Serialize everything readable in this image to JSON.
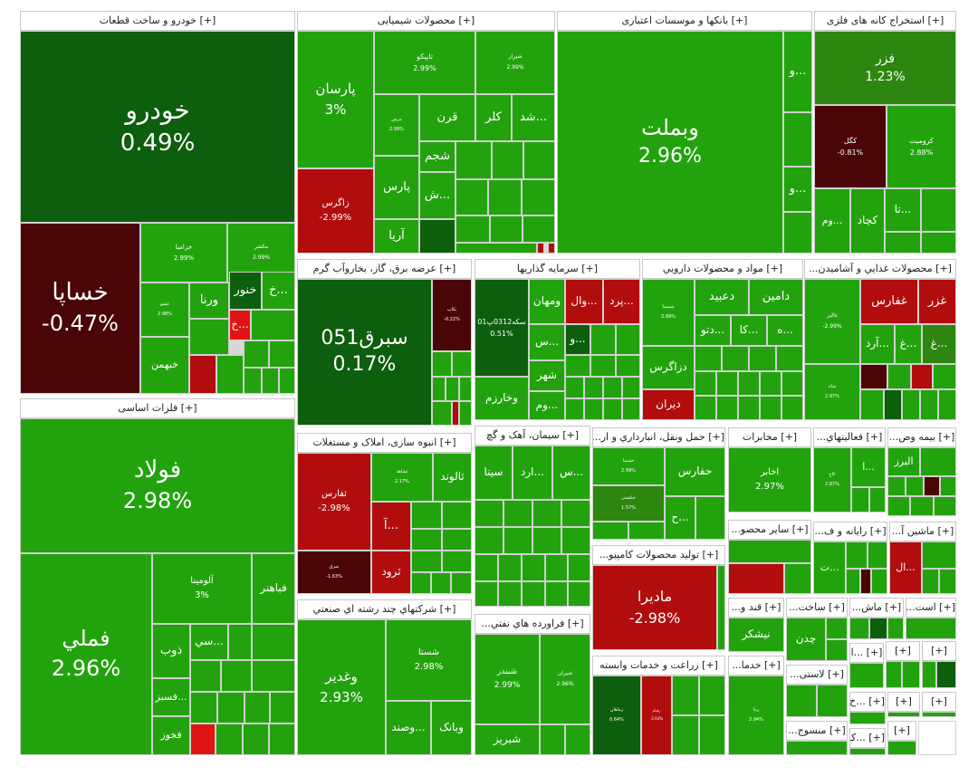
{
  "colors": {
    "green": "#22a30d",
    "dark_green": "#0d5e0d",
    "medium_green": "#2d860f",
    "red": "#b20d0d",
    "dark_red": "#4a0606",
    "bright_red": "#e01414"
  },
  "sectors": [
    {
      "id": "auto",
      "label": "[+] خودرو و ساخت قطعات",
      "tiles": [
        {
          "sym": "خودرو",
          "pct": "0.49%",
          "color": "dark_green",
          "size": "xl"
        },
        {
          "sym": "خساپا",
          "pct": "-0.47%",
          "color": "dark_red",
          "size": "l"
        },
        {
          "sym": "خزامیا",
          "pct": "2.99%",
          "color": "green",
          "size": "xs"
        },
        {
          "sym": "مکشر",
          "pct": "2.99%",
          "color": "green",
          "size": "xs"
        },
        {
          "sym": "غشو",
          "pct": "2.98%",
          "color": "green",
          "size": "xxs"
        },
        {
          "sym": "ورنا",
          "pct": "",
          "color": "green",
          "size": "s"
        },
        {
          "sym": "خنور",
          "pct": "",
          "color": "dark_green",
          "size": "s"
        },
        {
          "sym": "...خ",
          "pct": "",
          "color": "green",
          "size": "s"
        },
        {
          "sym": "...خ",
          "pct": "",
          "color": "bright_red",
          "size": "s"
        },
        {
          "sym": "خبهمن",
          "pct": "",
          "color": "green",
          "size": "s"
        }
      ]
    },
    {
      "id": "chem",
      "label": "[+] محصولات شیمیایی",
      "tiles": [
        {
          "sym": "پارسان",
          "pct": "3%",
          "color": "green",
          "size": "m"
        },
        {
          "sym": "زاگرس",
          "pct": "-2.99%",
          "color": "red",
          "size": "xs"
        },
        {
          "sym": "تاپیکو",
          "pct": "2.99%",
          "color": "green",
          "size": "xs"
        },
        {
          "sym": "شیراز",
          "pct": "2.99%",
          "color": "green",
          "size": "xxs"
        },
        {
          "sym": "مرش",
          "pct": "2.99%",
          "color": "green",
          "size": "xxs"
        },
        {
          "sym": "قرن",
          "pct": "",
          "color": "green",
          "size": "s"
        },
        {
          "sym": "کلر",
          "pct": "",
          "color": "green",
          "size": "s"
        },
        {
          "sym": "...شد",
          "pct": "",
          "color": "green",
          "size": "s"
        },
        {
          "sym": "شجم",
          "pct": "",
          "color": "green",
          "size": "s"
        },
        {
          "sym": "پارس",
          "pct": "",
          "color": "green",
          "size": "s"
        },
        {
          "sym": "...ش",
          "pct": "",
          "color": "green",
          "size": "s"
        },
        {
          "sym": "آریا",
          "pct": "",
          "color": "green",
          "size": "s"
        }
      ]
    },
    {
      "id": "banks",
      "label": "[+] بانکها و موسسات اعتباری",
      "tiles": [
        {
          "sym": "وبملت",
          "pct": "2.96%",
          "color": "green",
          "size": "l"
        },
        {
          "sym": "...و",
          "pct": "",
          "color": "green",
          "size": "s"
        },
        {
          "sym": "...و",
          "pct": "",
          "color": "green",
          "size": "s"
        }
      ]
    },
    {
      "id": "metalmine",
      "label": "[+] استخراج کانه های فلزی",
      "tiles": [
        {
          "sym": "فزر",
          "pct": "1.23%",
          "color": "medium_green",
          "size": "m"
        },
        {
          "sym": "کگل",
          "pct": "-0.81%",
          "color": "dark_red",
          "size": "xs"
        },
        {
          "sym": "کرومیت",
          "pct": "2.88%",
          "color": "green",
          "size": "xs"
        },
        {
          "sym": "...تا",
          "pct": "",
          "color": "green",
          "size": "s"
        },
        {
          "sym": "...وم",
          "pct": "",
          "color": "green",
          "size": "s"
        },
        {
          "sym": "کچاد",
          "pct": "",
          "color": "green",
          "size": "s"
        }
      ]
    },
    {
      "id": "basemetal",
      "label": "[+] فلزات اساسی",
      "tiles": [
        {
          "sym": "فولاد",
          "pct": "2.98%",
          "color": "green",
          "size": "l"
        },
        {
          "sym": "فملي",
          "pct": "2.96%",
          "color": "green",
          "size": "l"
        },
        {
          "sym": "آلومينا",
          "pct": "3%",
          "color": "green",
          "size": "xs"
        },
        {
          "sym": "فباهنر",
          "pct": "",
          "color": "green",
          "size": "s"
        },
        {
          "sym": "ذوب",
          "pct": "",
          "color": "green",
          "size": "s"
        },
        {
          "sym": "...سي",
          "pct": "",
          "color": "green",
          "size": "s"
        },
        {
          "sym": "...فسبز",
          "pct": "",
          "color": "green",
          "size": "s"
        },
        {
          "sym": "فخوز",
          "pct": "",
          "color": "green",
          "size": "s"
        }
      ]
    },
    {
      "id": "power",
      "label": "[+] عرضه برق، گاز، بخاروآب گرم",
      "tiles": [
        {
          "sym": "سبرق051",
          "pct": "0.17%",
          "color": "dark_green",
          "size": "l"
        },
        {
          "sym": "بکاپ",
          "pct": "-0.22%",
          "color": "dark_red",
          "size": "xxs"
        }
      ]
    },
    {
      "id": "invest",
      "label": "[+] سرمایه گذاریها",
      "tiles": [
        {
          "sym": "سکه0312پ01",
          "pct": "0.51%",
          "color": "dark_green",
          "size": "xs"
        },
        {
          "sym": "ومهان",
          "pct": "",
          "color": "green",
          "size": "s"
        },
        {
          "sym": "...وال",
          "pct": "",
          "color": "red",
          "size": "s"
        },
        {
          "sym": "...پرد",
          "pct": "",
          "color": "red",
          "size": "s"
        },
        {
          "sym": "...و",
          "pct": "",
          "color": "green",
          "size": "s"
        },
        {
          "sym": "...س",
          "pct": "",
          "color": "green",
          "size": "s"
        },
        {
          "sym": "شهر",
          "pct": "",
          "color": "green",
          "size": "s"
        },
        {
          "sym": "وخارزم",
          "pct": "",
          "color": "green",
          "size": "s"
        },
        {
          "sym": "...وم",
          "pct": "",
          "color": "green",
          "size": "s"
        }
      ]
    },
    {
      "id": "pharma",
      "label": "[+] مواد و محصولات دارويي",
      "tiles": [
        {
          "sym": "شسینا",
          "pct": "2.99%",
          "color": "green",
          "size": "xxs"
        },
        {
          "sym": "دعبید",
          "pct": "",
          "color": "green",
          "size": "s"
        },
        {
          "sym": "دامین",
          "pct": "",
          "color": "green",
          "size": "s"
        },
        {
          "sym": "...دتو",
          "pct": "",
          "color": "green",
          "size": "s"
        },
        {
          "sym": "...کا",
          "pct": "",
          "color": "green",
          "size": "s"
        },
        {
          "sym": "...ه",
          "pct": "",
          "color": "green",
          "size": "s"
        },
        {
          "sym": "دزاگرس",
          "pct": "",
          "color": "green",
          "size": "s"
        },
        {
          "sym": "دیران",
          "pct": "",
          "color": "red",
          "size": "s"
        }
      ]
    },
    {
      "id": "food",
      "label": "[+] محصولات غذايي و آشاميدن...",
      "tiles": [
        {
          "sym": "غالبر",
          "pct": "-2.99%",
          "color": "red",
          "size": "xxs"
        },
        {
          "sym": "غفارس",
          "pct": "",
          "color": "red",
          "size": "s"
        },
        {
          "sym": "غزر",
          "pct": "",
          "color": "red",
          "size": "s"
        },
        {
          "sym": "...آرد",
          "pct": "",
          "color": "green",
          "size": "s"
        },
        {
          "sym": "...غ",
          "pct": "",
          "color": "green",
          "size": "s"
        },
        {
          "sym": "...غ",
          "pct": "",
          "color": "green",
          "size": "s"
        },
        {
          "sym": "شاه",
          "pct": "2.97%",
          "color": "green",
          "size": "xxs"
        }
      ]
    },
    {
      "id": "construct",
      "label": "[+] انبوه سازی، املاک و مستغلات",
      "tiles": [
        {
          "sym": "ثفارس",
          "pct": "-2.98%",
          "color": "red",
          "size": "xs"
        },
        {
          "sym": "ثشاهد",
          "pct": "2.17%",
          "color": "green",
          "size": "xxs"
        },
        {
          "sym": "ثالوند",
          "pct": "",
          "color": "green",
          "size": "s"
        },
        {
          "sym": "...آ",
          "pct": "",
          "color": "red",
          "size": "s"
        },
        {
          "sym": "ثرود",
          "pct": "",
          "color": "red",
          "size": "s"
        },
        {
          "sym": "ثمرق",
          "pct": "-1.63%",
          "color": "dark_red",
          "size": "xxs"
        }
      ]
    },
    {
      "id": "cement",
      "label": "[+] سیمان، آهک و گچ",
      "tiles": [
        {
          "sym": "سیتا",
          "pct": "",
          "color": "green",
          "size": "s"
        },
        {
          "sym": "...ارد",
          "pct": "",
          "color": "green",
          "size": "s"
        },
        {
          "sym": "...س",
          "pct": "",
          "color": "green",
          "size": "s"
        }
      ]
    },
    {
      "id": "transport",
      "label": "[+] حمل ونقل، انبارداري و ار...",
      "tiles": [
        {
          "sym": "حسینا",
          "pct": "2.99%",
          "color": "green",
          "size": "xxs"
        },
        {
          "sym": "حفارس",
          "pct": "",
          "color": "green",
          "size": "s"
        },
        {
          "sym": "حکشتی",
          "pct": "1.57%",
          "color": "medium_green",
          "size": "xxs"
        },
        {
          "sym": "...ح",
          "pct": "",
          "color": "green",
          "size": "s"
        }
      ]
    },
    {
      "id": "telecom",
      "label": "[+] مخابرات",
      "tiles": [
        {
          "sym": "اخابر",
          "pct": "2.97%",
          "color": "green",
          "size": "xs"
        }
      ]
    },
    {
      "id": "misc_act",
      "label": "[+] فعالیتهاي...",
      "tiles": [
        {
          "sym": "کاخ",
          "pct": "2.87%",
          "color": "green",
          "size": "xxs"
        },
        {
          "sym": "...ا",
          "pct": "",
          "color": "green",
          "size": "s"
        }
      ]
    },
    {
      "id": "insure",
      "label": "[+] بیمه وص...",
      "tiles": [
        {
          "sym": "البرز",
          "pct": "",
          "color": "green",
          "size": "s"
        }
      ]
    },
    {
      "id": "multi",
      "label": "[+] شرکتهاي چند رشته اي صنعتي",
      "tiles": [
        {
          "sym": "وغدير",
          "pct": "2.93%",
          "color": "green",
          "size": "m"
        },
        {
          "sym": "شستا",
          "pct": "2.98%",
          "color": "green",
          "size": "xs"
        },
        {
          "sym": "...وصند",
          "pct": "",
          "color": "green",
          "size": "s"
        },
        {
          "sym": "وبانک",
          "pct": "",
          "color": "green",
          "size": "s"
        }
      ]
    },
    {
      "id": "refinery",
      "label": "[+] فراورده هاي نفتي...",
      "tiles": [
        {
          "sym": "شبندر",
          "pct": "2.99%",
          "color": "green",
          "size": "xs"
        },
        {
          "sym": "شیران",
          "pct": "2.96%",
          "color": "green",
          "size": "xxs"
        },
        {
          "sym": "شبريز",
          "pct": "",
          "color": "green",
          "size": "s"
        }
      ]
    },
    {
      "id": "computer",
      "label": "[+] تولید محصولات کامپیو...",
      "tiles": [
        {
          "sym": "ماديرا",
          "pct": "-2.98%",
          "color": "red",
          "size": "m"
        }
      ]
    },
    {
      "id": "agri",
      "label": "[+] زراعت و خدمات وابسته",
      "tiles": [
        {
          "sym": "زماهان",
          "pct": "0.64%",
          "color": "dark_green",
          "size": "xxs"
        },
        {
          "sym": "زقیام",
          "pct": "-2.93%",
          "color": "red",
          "size": "xxs"
        }
      ]
    },
    {
      "id": "other_prod",
      "label": "[+] ساير محصو...",
      "tiles": []
    },
    {
      "id": "computer2",
      "label": "[+] رايانه و ف...",
      "tiles": [
        {
          "sym": "...ت",
          "pct": "",
          "color": "green",
          "size": "s"
        }
      ]
    },
    {
      "id": "machinery",
      "label": "[+] ماشين آ...",
      "tiles": [
        {
          "sym": "...ال",
          "pct": "",
          "color": "red",
          "size": "s"
        }
      ]
    },
    {
      "id": "sugar",
      "label": "[+] قند و...",
      "tiles": [
        {
          "sym": "نيشکر",
          "pct": "",
          "color": "green",
          "size": "s"
        }
      ]
    },
    {
      "id": "build",
      "label": "[+] ساخت...",
      "tiles": [
        {
          "sym": "چدن",
          "pct": "",
          "color": "green",
          "size": "s"
        }
      ]
    },
    {
      "id": "mach2",
      "label": "[+] ماش...",
      "tiles": []
    },
    {
      "id": "ast",
      "label": "[+] است...",
      "tiles": []
    },
    {
      "id": "rubber",
      "label": "[+] لاستی...",
      "tiles": []
    },
    {
      "id": "services",
      "label": "[+] خدما...",
      "tiles": [
        {
          "sym": "زبنا",
          "pct": "2.94%",
          "color": "green",
          "size": "xxs"
        }
      ]
    },
    {
      "id": "textile",
      "label": "[+] منسوج...",
      "tiles": []
    },
    {
      "id": "s1",
      "label": "[+] ...ا",
      "tiles": []
    },
    {
      "id": "s2",
      "label": "[+] ...خ",
      "tiles": []
    },
    {
      "id": "s3",
      "label": "[+] ...کا",
      "tiles": []
    },
    {
      "id": "s4",
      "label": "[+]",
      "tiles": []
    },
    {
      "id": "s5",
      "label": "[+]",
      "tiles": []
    },
    {
      "id": "s6",
      "label": "[+]",
      "tiles": []
    },
    {
      "id": "s7",
      "label": "[+]",
      "tiles": []
    },
    {
      "id": "s8",
      "label": "[+]",
      "tiles": []
    }
  ]
}
